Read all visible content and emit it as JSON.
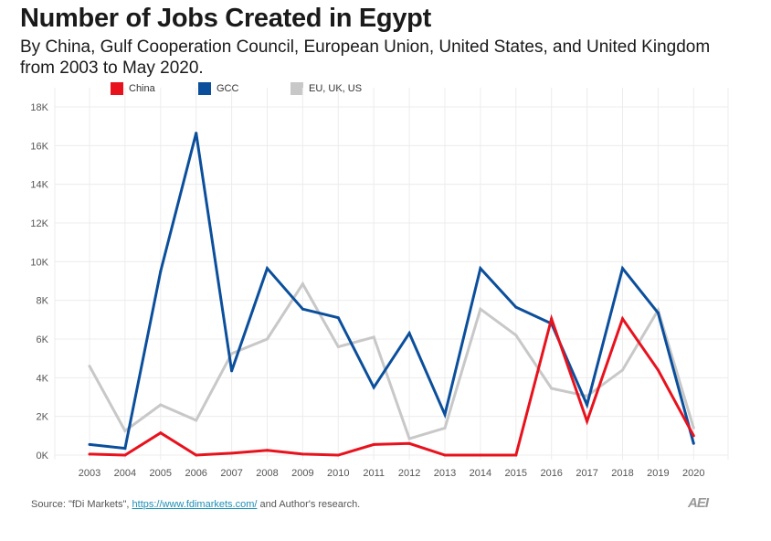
{
  "header": {
    "title": "Number of Jobs Created in Egypt",
    "subtitle": "By China, Gulf Cooperation Council, European Union, United States, and United Kingdom from 2003 to May 2020."
  },
  "footer": {
    "source_prefix": "Source: \"fDi Markets\",",
    "source_link": "https://www.fdimarkets.com/",
    "source_suffix": "and Author's research.",
    "logo_text": "AEI"
  },
  "chart_data": {
    "type": "line",
    "title": "Number of Jobs Created in Egypt",
    "subtitle": "By China, Gulf Cooperation Council, European Union, United States, and United Kingdom from 2003 to May 2020.",
    "xlabel": "",
    "ylabel": "",
    "ylim": [
      0,
      18000
    ],
    "grid": true,
    "legend_position": "top-left",
    "x": [
      "2003",
      "2004",
      "2005",
      "2006",
      "2007",
      "2008",
      "2009",
      "2010",
      "2011",
      "2012",
      "2013",
      "2014",
      "2015",
      "2016",
      "2017",
      "2018",
      "2019",
      "2020"
    ],
    "y_ticks": [
      {
        "value": 0,
        "label": "0K"
      },
      {
        "value": 2000,
        "label": "2K"
      },
      {
        "value": 4000,
        "label": "4K"
      },
      {
        "value": 6000,
        "label": "6K"
      },
      {
        "value": 8000,
        "label": "8K"
      },
      {
        "value": 10000,
        "label": "10K"
      },
      {
        "value": 12000,
        "label": "12K"
      },
      {
        "value": 14000,
        "label": "14K"
      },
      {
        "value": 16000,
        "label": "16K"
      },
      {
        "value": 18000,
        "label": "18K"
      }
    ],
    "series": [
      {
        "name": "EU, UK, US",
        "color": "#c8c8c8",
        "values": [
          4600,
          1250,
          2600,
          1800,
          5250,
          6000,
          8850,
          5600,
          6100,
          850,
          1400,
          7550,
          6200,
          3450,
          3050,
          4400,
          7500,
          1400
        ]
      },
      {
        "name": "GCC",
        "color": "#0b4f9c",
        "values": [
          550,
          350,
          9500,
          16650,
          4350,
          9650,
          7550,
          7100,
          3500,
          6300,
          2100,
          9650,
          7650,
          6800,
          2600,
          9650,
          7350,
          600
        ]
      },
      {
        "name": "China",
        "color": "#e8121d",
        "values": [
          50,
          0,
          1150,
          0,
          100,
          250,
          50,
          0,
          550,
          600,
          0,
          0,
          0,
          7050,
          1750,
          7050,
          4400,
          1000
        ]
      }
    ],
    "legend_order": [
      "China",
      "GCC",
      "EU, UK, US"
    ]
  }
}
